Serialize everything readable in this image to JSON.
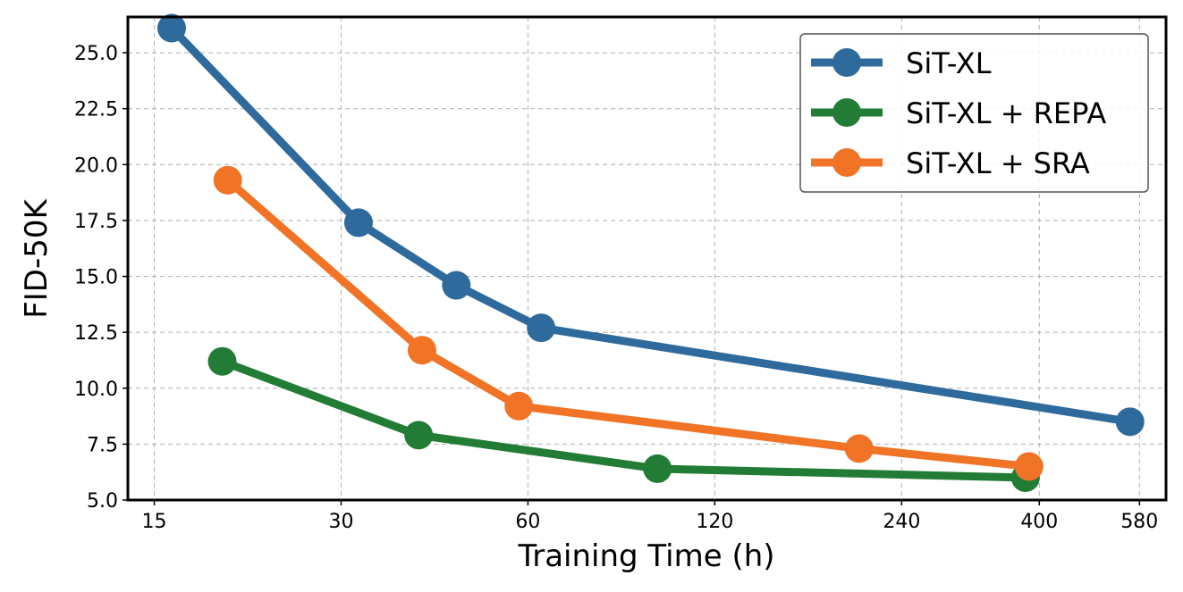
{
  "chart_data": {
    "type": "line",
    "title": "",
    "xlabel": "Training Time (h)",
    "ylabel": "FID-50K",
    "xscale": "log",
    "xlim": [
      13.6,
      640
    ],
    "ylim": [
      5.0,
      26.6
    ],
    "xticks": [
      15,
      30,
      60,
      120,
      240,
      400,
      580
    ],
    "yticks": [
      5.0,
      7.5,
      10.0,
      12.5,
      15.0,
      17.5,
      20.0,
      22.5,
      25.0
    ],
    "ytick_labels": [
      "5.0",
      "7.5",
      "10.0",
      "12.5",
      "15.0",
      "17.5",
      "20.0",
      "22.5",
      "25.0"
    ],
    "grid": true,
    "legend_position": "top-right",
    "series": [
      {
        "name": "SiT-XL",
        "color": "#2f6a9c",
        "x": [
          16,
          32,
          46,
          63,
          560
        ],
        "y": [
          26.1,
          17.4,
          14.6,
          12.7,
          8.5
        ]
      },
      {
        "name": "SiT-XL + REPA",
        "color": "#237c35",
        "x": [
          19.3,
          40,
          97,
          380
        ],
        "y": [
          11.2,
          7.9,
          6.4,
          6.0
        ]
      },
      {
        "name": "SiT-XL + SRA",
        "color": "#f07326",
        "x": [
          19.7,
          40.5,
          58,
          205,
          385
        ],
        "y": [
          19.3,
          11.7,
          9.2,
          7.3,
          6.5
        ]
      }
    ]
  }
}
